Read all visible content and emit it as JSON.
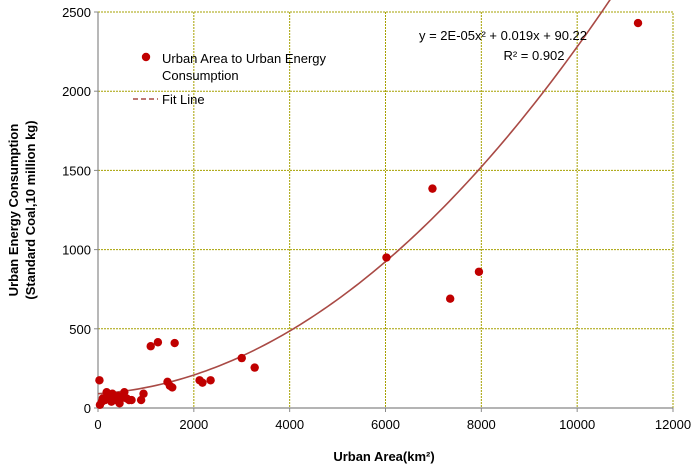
{
  "chart_data": {
    "type": "scatter",
    "xlabel": "Urban Area(km²)",
    "ylabel_line1": "Urban Energy Consumption",
    "ylabel_line2": "(Standard Coal,10 million kg)",
    "xlim": [
      0,
      12000
    ],
    "ylim": [
      0,
      2500
    ],
    "xticks": [
      0,
      2000,
      4000,
      6000,
      8000,
      10000,
      12000
    ],
    "yticks": [
      0,
      500,
      1000,
      1500,
      2000,
      2500
    ],
    "grid": true,
    "legend_position": "top-left",
    "equation": "y = 2E-05x² + 0.019x + 90.22",
    "r_squared": "R² = 0.902",
    "colors": {
      "points": "#c00000",
      "fit": "#a94a45",
      "grid": "#a6a000",
      "axis": "#888888"
    },
    "series": [
      {
        "name": "Urban Area to Urban Energy Consumption",
        "points": [
          [
            30,
            175
          ],
          [
            40,
            20
          ],
          [
            80,
            40
          ],
          [
            100,
            60
          ],
          [
            150,
            50
          ],
          [
            180,
            100
          ],
          [
            200,
            80
          ],
          [
            250,
            70
          ],
          [
            280,
            40
          ],
          [
            300,
            90
          ],
          [
            350,
            60
          ],
          [
            380,
            50
          ],
          [
            420,
            75
          ],
          [
            450,
            30
          ],
          [
            480,
            60
          ],
          [
            550,
            100
          ],
          [
            600,
            60
          ],
          [
            650,
            50
          ],
          [
            700,
            50
          ],
          [
            900,
            50
          ],
          [
            950,
            90
          ],
          [
            1100,
            390
          ],
          [
            1250,
            415
          ],
          [
            1450,
            165
          ],
          [
            1500,
            140
          ],
          [
            1550,
            130
          ],
          [
            1600,
            410
          ],
          [
            2120,
            175
          ],
          [
            2180,
            160
          ],
          [
            2350,
            175
          ],
          [
            3000,
            315
          ],
          [
            3270,
            255
          ],
          [
            6020,
            950
          ],
          [
            6980,
            1385
          ],
          [
            7350,
            690
          ],
          [
            7950,
            860
          ],
          [
            11270,
            2430
          ]
        ]
      },
      {
        "name": "Fit Line",
        "type": "line",
        "coefficients": {
          "a": 2e-05,
          "b": 0.019,
          "c": 90.22
        },
        "x_range": [
          0,
          11270
        ]
      }
    ]
  }
}
